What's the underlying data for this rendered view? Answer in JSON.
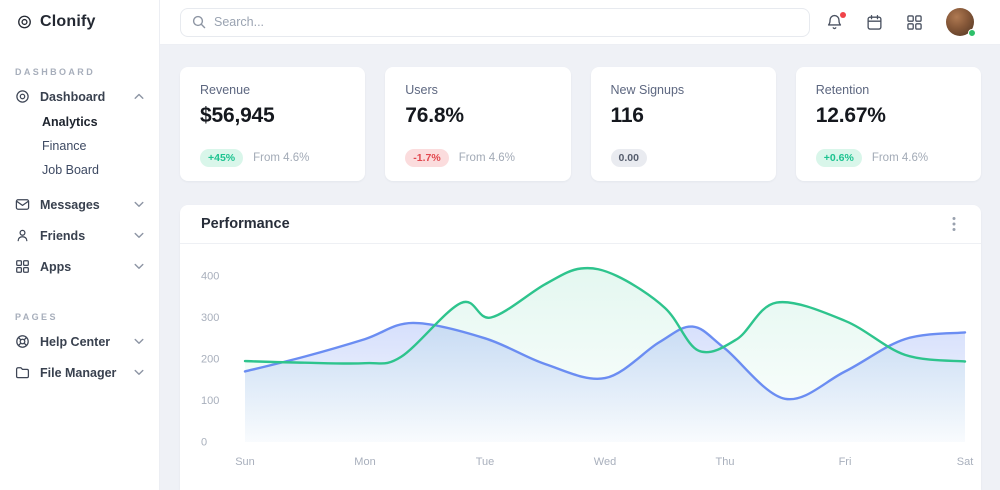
{
  "brand": {
    "name": "Clonify",
    "icon": "clonify-logo-icon"
  },
  "sidebar": {
    "sections": [
      {
        "label": "DASHBOARD",
        "items": [
          {
            "id": "dashboard",
            "label": "Dashboard",
            "icon": "dashboard-target-icon",
            "chevron": "up",
            "expanded": true,
            "children": [
              {
                "label": "Analytics",
                "active": true
              },
              {
                "label": "Finance",
                "active": false
              },
              {
                "label": "Job Board",
                "active": false
              }
            ]
          },
          {
            "id": "messages",
            "label": "Messages",
            "icon": "mail-icon",
            "chevron": "down"
          },
          {
            "id": "friends",
            "label": "Friends",
            "icon": "user-icon",
            "chevron": "down"
          },
          {
            "id": "apps",
            "label": "Apps",
            "icon": "apps-grid-icon",
            "chevron": "down"
          }
        ]
      },
      {
        "label": "PAGES",
        "items": [
          {
            "id": "help-center",
            "label": "Help Center",
            "icon": "lifebuoy-icon",
            "chevron": "down"
          },
          {
            "id": "file-manager",
            "label": "File Manager",
            "icon": "folder-icon",
            "chevron": "down"
          }
        ]
      }
    ]
  },
  "topbar": {
    "search_placeholder": "Search...",
    "action_icons": [
      "bell-icon",
      "calendar-icon",
      "apps-launcher-icon"
    ],
    "bell_has_notification": true,
    "avatar_status": "online"
  },
  "stats": [
    {
      "title": "Revenue",
      "value": "$56,945",
      "badge": "+45%",
      "badge_type": "positive",
      "note": "From 4.6%"
    },
    {
      "title": "Users",
      "value": "76.8%",
      "badge": "-1.7%",
      "badge_type": "negative",
      "note": "From 4.6%"
    },
    {
      "title": "New Signups",
      "value": "116",
      "badge": "0.00",
      "badge_type": "neutral",
      "note": ""
    },
    {
      "title": "Retention",
      "value": "12.67%",
      "badge": "+0.6%",
      "badge_type": "positive",
      "note": "From 4.6%"
    }
  ],
  "performance": {
    "title": "Performance",
    "menu_icon": "kebab-menu-icon"
  },
  "chart_data": {
    "type": "area",
    "title": "Performance",
    "x_labels": [
      "Sun",
      "Mon",
      "Tue",
      "Wed",
      "Thu",
      "Fri",
      "Sat"
    ],
    "y_ticks": [
      0,
      100,
      200,
      300,
      400
    ],
    "ylim": [
      0,
      440
    ],
    "grid": false,
    "legend": "none",
    "series": [
      {
        "name": "series-green",
        "color": "#2ec48d",
        "values_at_labels": [
          195,
          190,
          302,
          405,
          240,
          292,
          194
        ],
        "shape_points": [
          [
            0,
            195
          ],
          [
            0.5,
            191
          ],
          [
            1,
            190
          ],
          [
            1.3,
            205
          ],
          [
            1.8,
            335
          ],
          [
            2.05,
            300
          ],
          [
            2.5,
            380
          ],
          [
            2.8,
            418
          ],
          [
            3.1,
            400
          ],
          [
            3.5,
            323
          ],
          [
            3.78,
            220
          ],
          [
            4.1,
            248
          ],
          [
            4.43,
            336
          ],
          [
            5,
            292
          ],
          [
            5.5,
            210
          ],
          [
            6,
            194
          ]
        ]
      },
      {
        "name": "series-blue",
        "color": "#6b8df2",
        "values_at_labels": [
          170,
          248,
          250,
          154,
          225,
          170,
          264
        ],
        "shape_points": [
          [
            0,
            170
          ],
          [
            0.5,
            206
          ],
          [
            1,
            248
          ],
          [
            1.4,
            287
          ],
          [
            2,
            250
          ],
          [
            2.5,
            188
          ],
          [
            3,
            154
          ],
          [
            3.45,
            240
          ],
          [
            3.73,
            278
          ],
          [
            4,
            225
          ],
          [
            4.5,
            104
          ],
          [
            5,
            170
          ],
          [
            5.5,
            248
          ],
          [
            6,
            264
          ]
        ]
      }
    ]
  }
}
